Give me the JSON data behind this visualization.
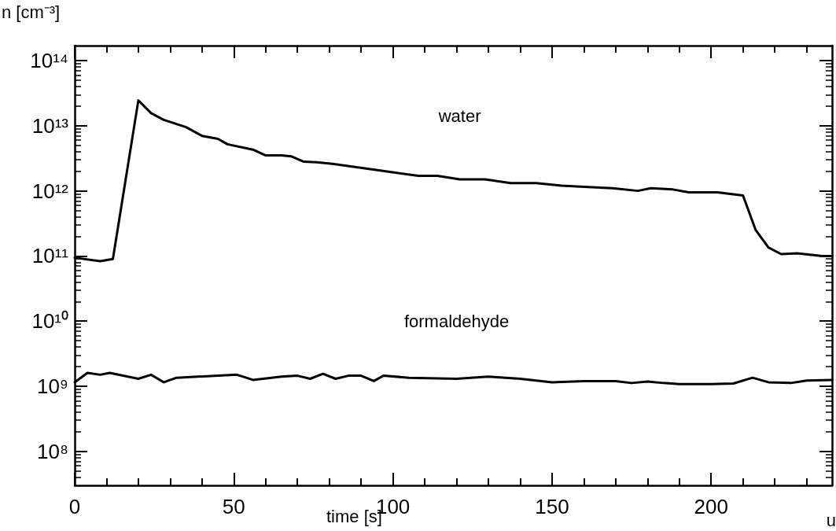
{
  "chart_data": {
    "type": "line",
    "xlabel": "time [s]",
    "ylabel": "n [cm⁻³]",
    "log": "y",
    "grid": false,
    "legend": false,
    "marker": "none",
    "line_style": "solid",
    "xlim": [
      0,
      238
    ],
    "xticks": [
      0,
      50,
      100,
      150,
      200
    ],
    "ylim": [
      30000000.0,
      170000000000000.0
    ],
    "yticks": [
      {
        "value": 100000000.0,
        "label": "10⁸"
      },
      {
        "value": 1000000000.0,
        "label": "10⁹"
      },
      {
        "value": 10000000000.0,
        "label": "10¹⁰"
      },
      {
        "value": 100000000000.0,
        "label": "10¹¹"
      },
      {
        "value": 1000000000000.0,
        "label": "10¹²"
      },
      {
        "value": 10000000000000.0,
        "label": "10¹³"
      },
      {
        "value": 100000000000000.0,
        "label": "10¹⁴"
      }
    ],
    "series": [
      {
        "name": "water",
        "color": "#000000",
        "x": [
          0,
          8,
          12,
          20,
          24,
          28,
          35,
          40,
          45,
          48,
          56,
          60,
          65,
          68,
          72,
          76,
          81,
          96,
          108,
          114,
          121,
          129,
          137,
          145,
          153,
          160,
          169,
          177,
          181,
          188,
          193,
          202,
          210,
          214,
          218,
          222,
          227,
          231,
          235,
          238
        ],
        "values": [
          94000000000.0,
          83000000000.0,
          90000000000.0,
          24500000000000.0,
          15600000000000.0,
          12300000000000.0,
          9500000000000.0,
          7000000000000.0,
          6300000000000.0,
          5200000000000.0,
          4300000000000.0,
          3500000000000.0,
          3500000000000.0,
          3400000000000.0,
          2800000000000.0,
          2750000000000.0,
          2600000000000.0,
          2050000000000.0,
          1700000000000.0,
          1700000000000.0,
          1500000000000.0,
          1500000000000.0,
          1320000000000.0,
          1320000000000.0,
          1200000000000.0,
          1150000000000.0,
          1100000000000.0,
          1000000000000.0,
          1100000000000.0,
          1050000000000.0,
          950000000000.0,
          950000000000.0,
          850000000000.0,
          250000000000.0,
          135000000000.0,
          107000000000.0,
          110000000000.0,
          105000000000.0,
          100000000000.0,
          100000000000.0
        ]
      },
      {
        "name": "formaldehyde",
        "color": "#000000",
        "x": [
          0,
          4,
          8,
          11,
          20,
          24,
          28,
          32,
          51,
          56,
          65,
          70,
          74,
          78,
          82,
          86,
          90,
          94,
          97,
          105,
          120,
          130,
          140,
          150,
          160,
          170,
          175,
          180,
          185,
          190,
          200,
          207,
          213,
          218,
          225,
          230,
          238
        ],
        "values": [
          1150000000.0,
          1600000000.0,
          1500000000.0,
          1600000000.0,
          1300000000.0,
          1500000000.0,
          1150000000.0,
          1350000000.0,
          1500000000.0,
          1250000000.0,
          1400000000.0,
          1450000000.0,
          1300000000.0,
          1550000000.0,
          1300000000.0,
          1450000000.0,
          1450000000.0,
          1200000000.0,
          1450000000.0,
          1350000000.0,
          1300000000.0,
          1400000000.0,
          1300000000.0,
          1150000000.0,
          1200000000.0,
          1200000000.0,
          1120000000.0,
          1180000000.0,
          1120000000.0,
          1080000000.0,
          1080000000.0,
          1100000000.0,
          1350000000.0,
          1150000000.0,
          1120000000.0,
          1220000000.0,
          1250000000.0
        ]
      }
    ],
    "annotations": [
      "u"
    ]
  }
}
